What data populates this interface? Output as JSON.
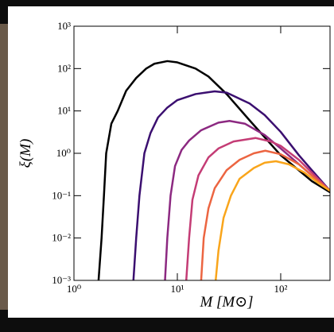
{
  "chart_data": {
    "type": "line",
    "xlabel": "M [M⊙]",
    "ylabel": "ξ(M)",
    "xscale": "log",
    "yscale": "log",
    "xlim": [
      1,
      300
    ],
    "ylim": [
      0.001,
      1000
    ],
    "xticks": [
      {
        "value": 1,
        "label": "10⁰"
      },
      {
        "value": 10,
        "label": "10¹"
      },
      {
        "value": 100,
        "label": "10²"
      }
    ],
    "yticks": [
      {
        "value": 0.001,
        "label": "10⁻³"
      },
      {
        "value": 0.01,
        "label": "10⁻²"
      },
      {
        "value": 0.1,
        "label": "10⁻¹"
      },
      {
        "value": 1,
        "label": "10⁰"
      },
      {
        "value": 10,
        "label": "10¹"
      },
      {
        "value": 100,
        "label": "10²"
      },
      {
        "value": 1000,
        "label": "10³"
      }
    ],
    "series": [
      {
        "color": "#000000",
        "x": [
          1.73,
          1.85,
          1.95,
          2.05,
          2.3,
          2.65,
          3.2,
          4,
          5,
          6,
          8,
          10,
          15,
          20,
          30,
          50,
          100,
          200,
          300
        ],
        "values": [
          0.001,
          0.01,
          0.1,
          1,
          5,
          10,
          30,
          60,
          100,
          130,
          150,
          140,
          100,
          65,
          25,
          6,
          0.9,
          0.22,
          0.12
        ]
      },
      {
        "color": "#3b0f70",
        "x": [
          3.76,
          4,
          4.3,
          4.8,
          5.5,
          6.5,
          8,
          10,
          15,
          23,
          30,
          50,
          70,
          100,
          150,
          200,
          300
        ],
        "values": [
          0.001,
          0.01,
          0.1,
          1,
          3,
          7,
          12,
          18,
          25,
          29,
          27,
          15,
          8,
          3.2,
          0.9,
          0.4,
          0.13
        ]
      },
      {
        "color": "#8c2981",
        "x": [
          7.6,
          8,
          8.6,
          9.5,
          11,
          13,
          17,
          25,
          32,
          45,
          70,
          100,
          150,
          200,
          300
        ],
        "values": [
          0.001,
          0.01,
          0.1,
          0.5,
          1.2,
          2,
          3.5,
          5.3,
          5.8,
          5,
          2.7,
          1.3,
          0.55,
          0.3,
          0.13
        ]
      },
      {
        "color": "#c43c75",
        "x": [
          12.2,
          13,
          14,
          16,
          20,
          25,
          35,
          57,
          80,
          100,
          150,
          200,
          300
        ],
        "values": [
          0.001,
          0.01,
          0.08,
          0.3,
          0.8,
          1.3,
          1.9,
          2.3,
          1.9,
          1.5,
          0.7,
          0.35,
          0.13
        ]
      },
      {
        "color": "#ec6541",
        "x": [
          17,
          18,
          20,
          23,
          30,
          40,
          55,
          71,
          100,
          150,
          200,
          300
        ],
        "values": [
          0.001,
          0.01,
          0.05,
          0.15,
          0.4,
          0.7,
          1,
          1.15,
          0.95,
          0.55,
          0.3,
          0.13
        ]
      },
      {
        "color": "#f9a51b",
        "x": [
          23.5,
          25,
          28,
          33,
          40,
          55,
          70,
          90,
          120,
          170,
          230,
          300
        ],
        "values": [
          0.001,
          0.005,
          0.03,
          0.1,
          0.25,
          0.45,
          0.6,
          0.65,
          0.55,
          0.35,
          0.2,
          0.13
        ]
      }
    ]
  }
}
